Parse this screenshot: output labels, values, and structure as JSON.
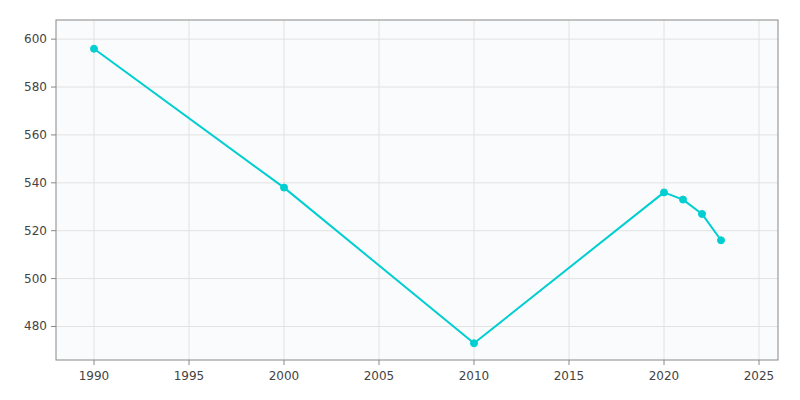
{
  "chart_data": {
    "type": "line",
    "x": [
      1990,
      2000,
      2010,
      2020,
      2021,
      2022,
      2023
    ],
    "values": [
      596,
      538,
      473,
      536,
      533,
      527,
      516
    ],
    "color": "#00CED1",
    "marker": "circle",
    "xlim": [
      1988,
      2026
    ],
    "ylim": [
      466,
      608
    ],
    "xticks": [
      1990,
      1995,
      2000,
      2005,
      2010,
      2015,
      2020,
      2025
    ],
    "yticks": [
      480,
      500,
      520,
      540,
      560,
      580,
      600
    ],
    "grid": true
  }
}
